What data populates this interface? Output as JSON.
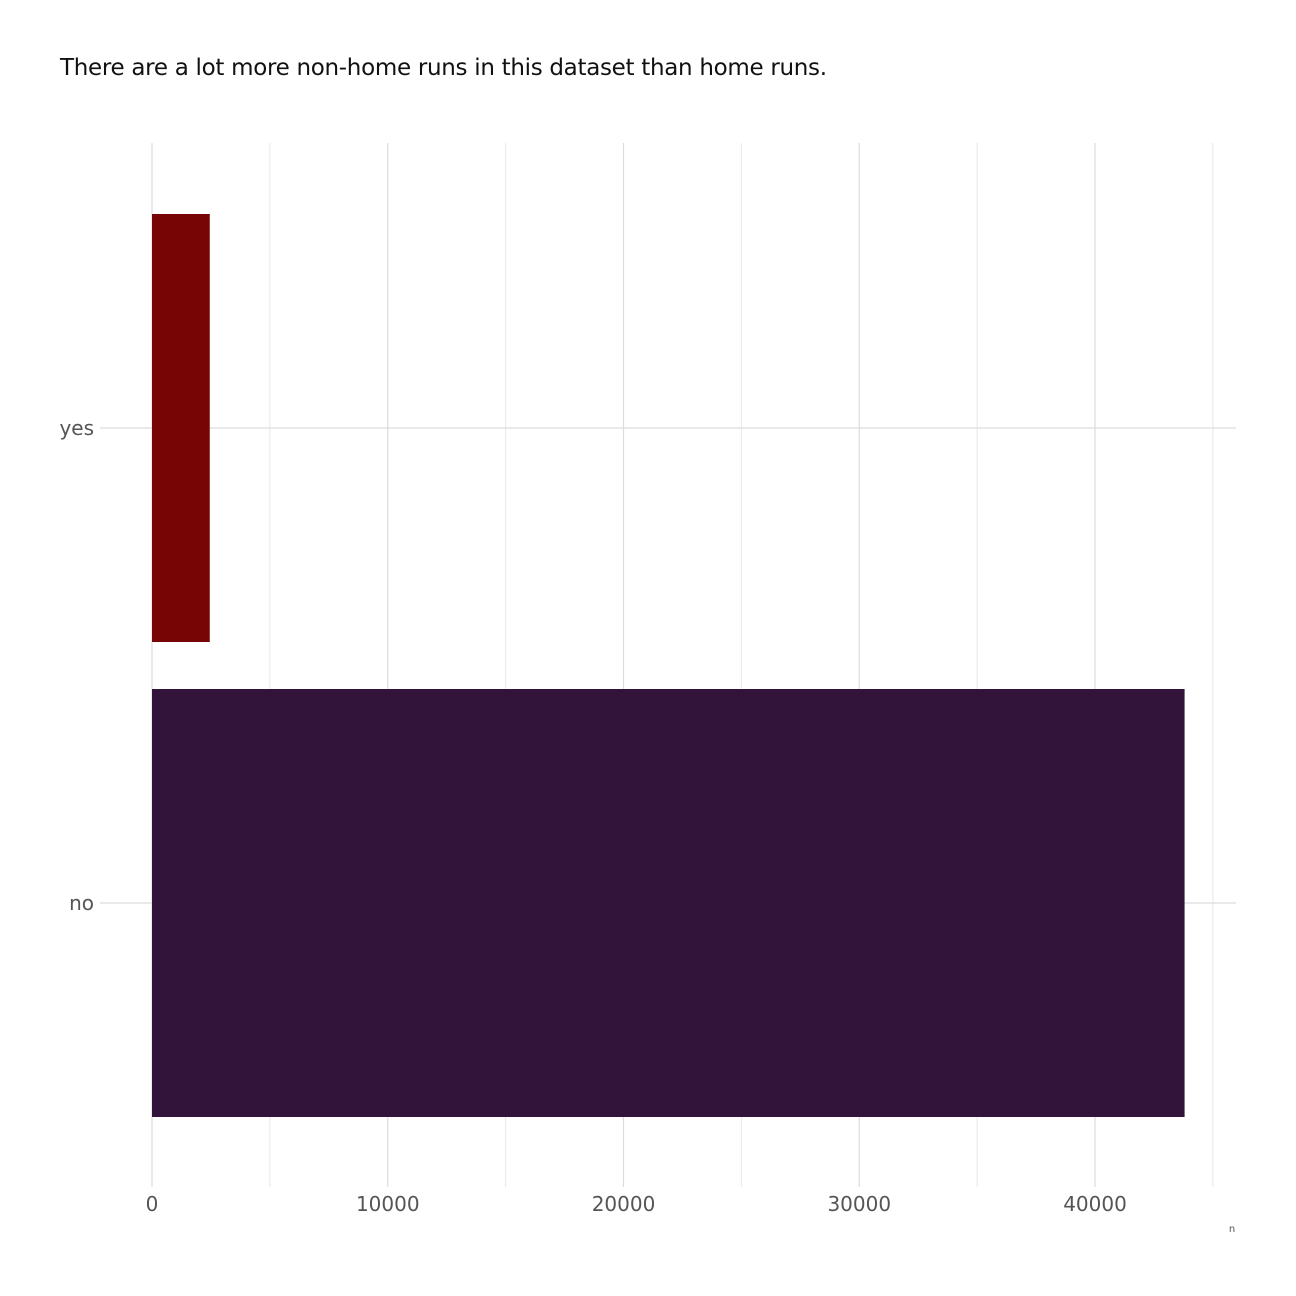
{
  "chart_data": {
    "type": "bar",
    "orientation": "horizontal",
    "title": "There are a lot more non-home runs in this dataset than home runs.",
    "categories": [
      "no",
      "yes"
    ],
    "values": [
      43800,
      2450
    ],
    "colors": [
      "#32133a",
      "#780505"
    ],
    "xlabel": "n",
    "ylabel": "",
    "xlim": [
      0,
      45000
    ],
    "x_ticks": [
      0,
      10000,
      20000,
      30000,
      40000
    ],
    "x_tick_labels": [
      "0",
      "10000",
      "20000",
      "30000",
      "40000"
    ],
    "grid": true,
    "legend": "none"
  }
}
